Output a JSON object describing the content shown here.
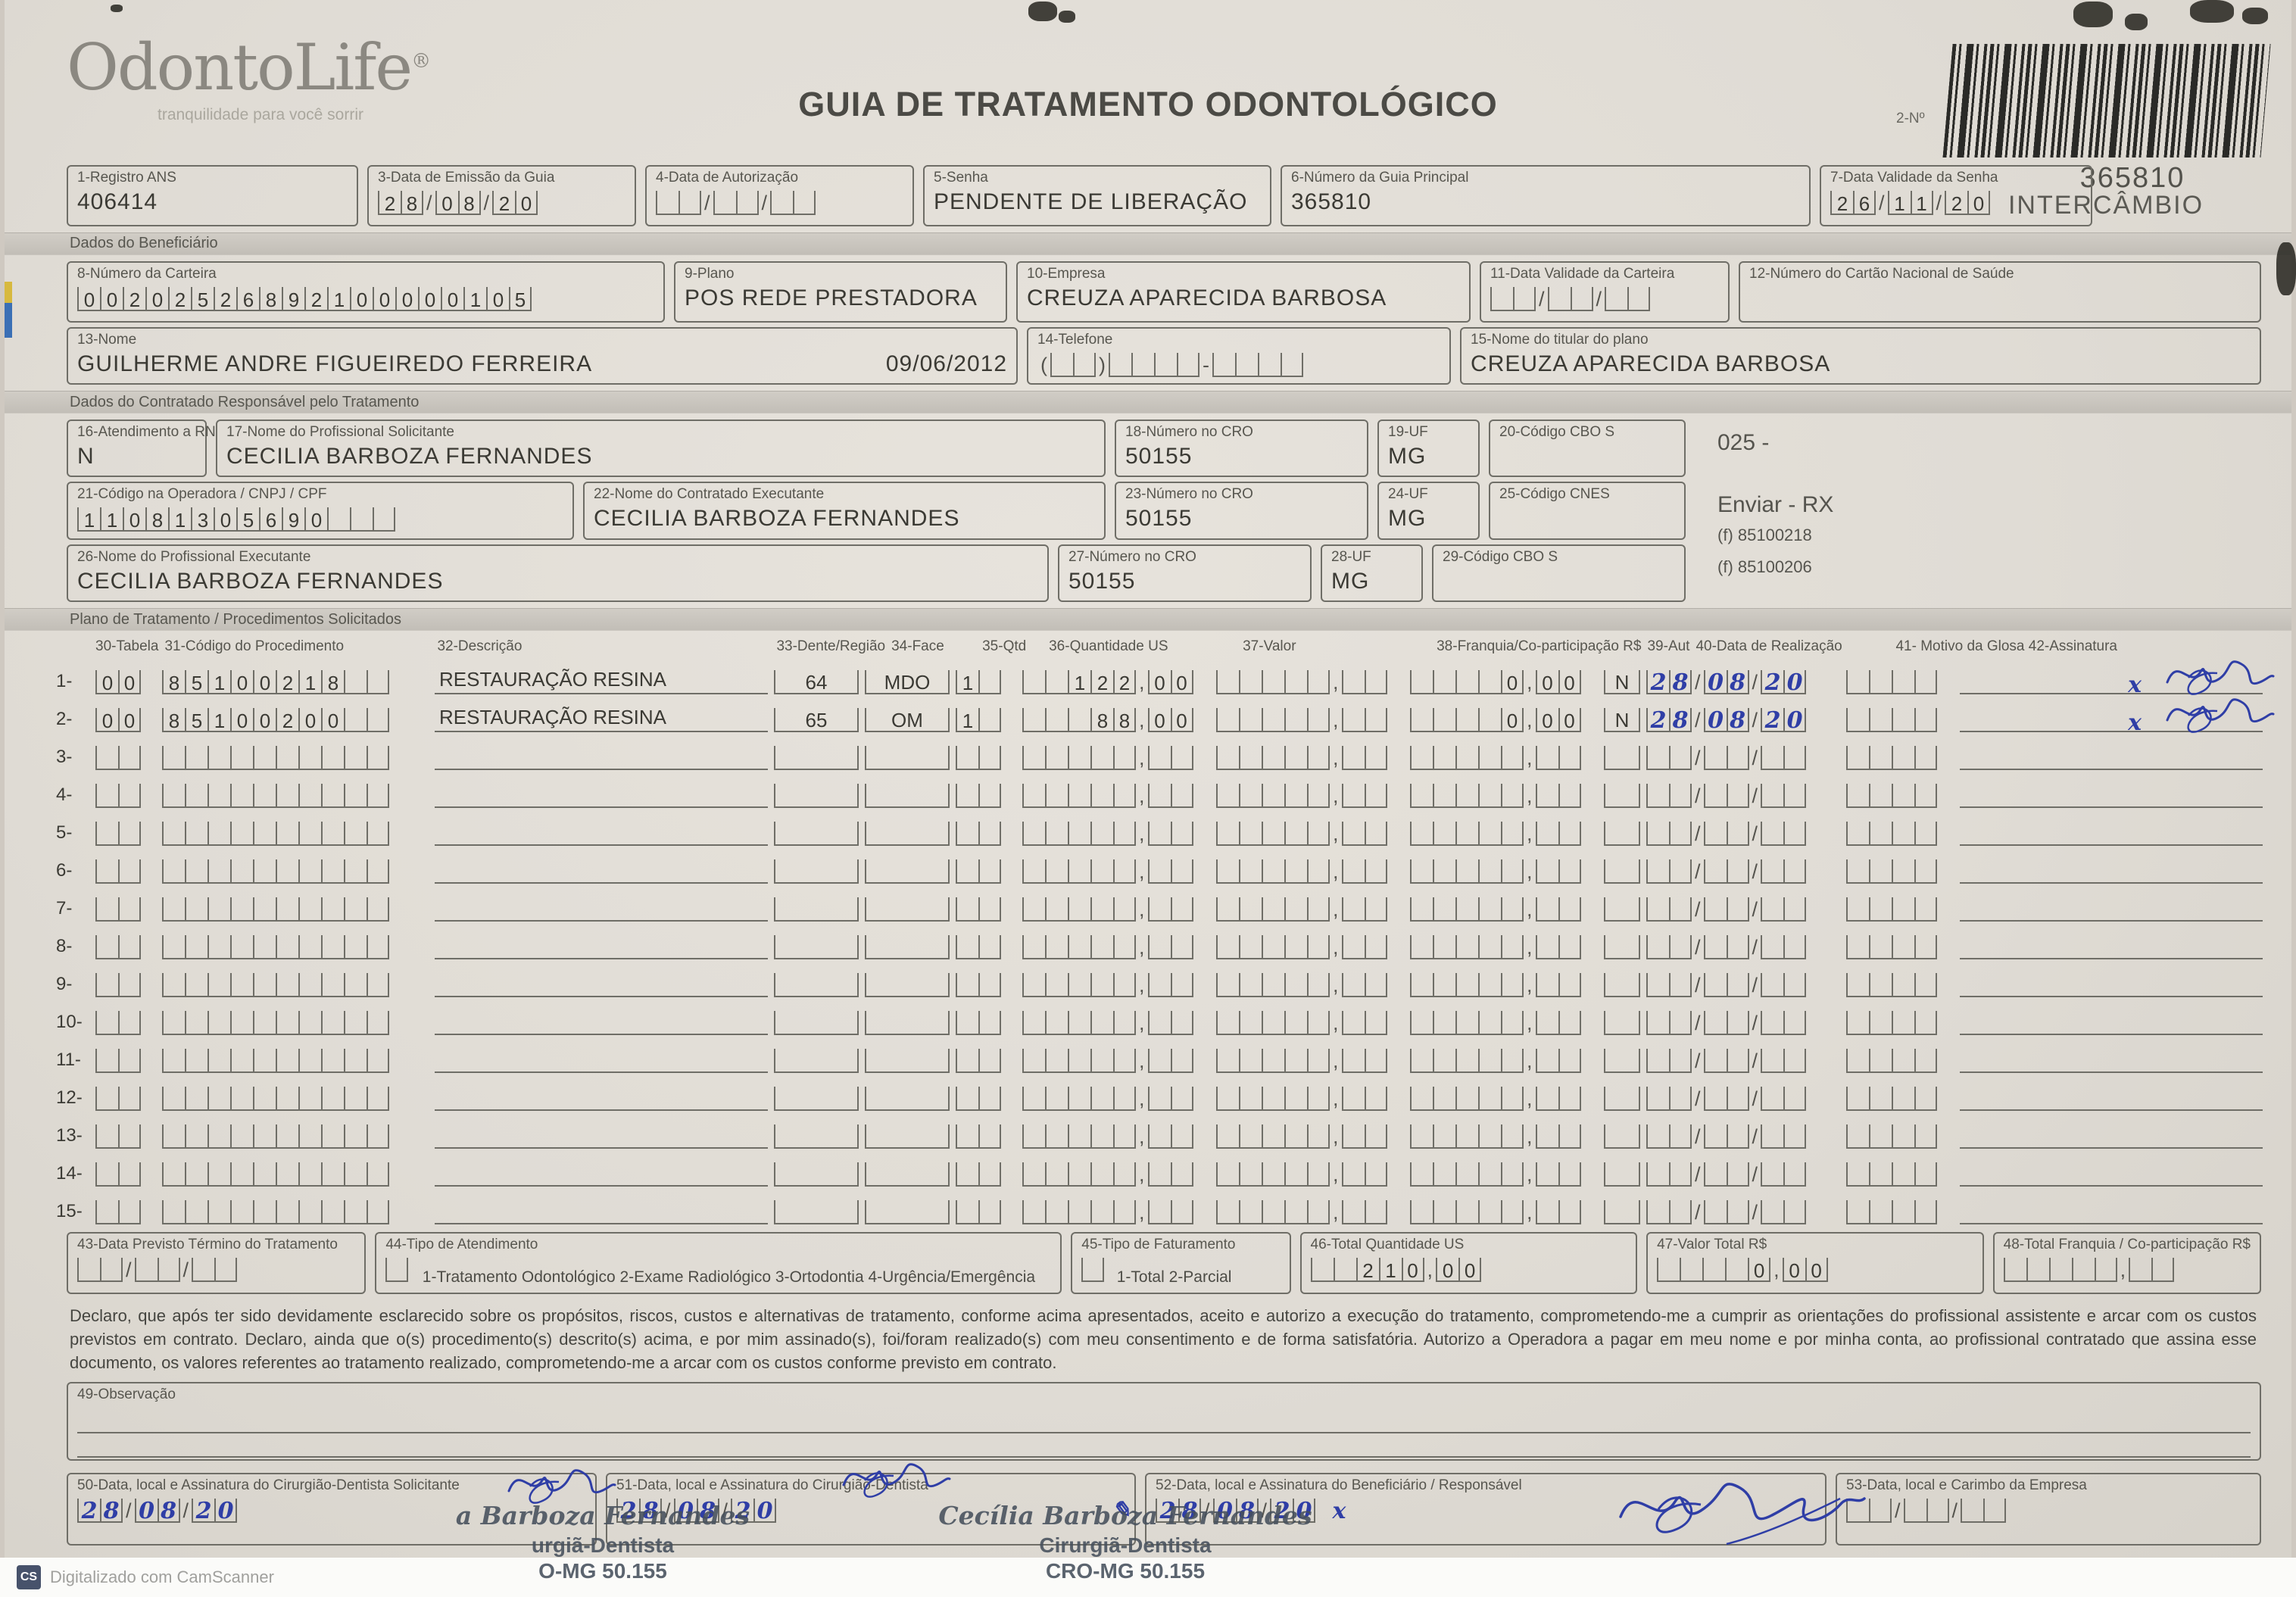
{
  "header": {
    "logo_text": "OdontoLife",
    "logo_reg": "®",
    "logo_tagline": "tranquilidade para você sorrir",
    "title": "GUIA DE TRATAMENTO ODONTOLÓGICO",
    "barcode_label": "2-Nº",
    "guide_number": "365810",
    "guide_type": "INTERCÂMBIO"
  },
  "sections": {
    "beneficiario": "Dados do Beneficiário",
    "contratado": "Dados do Contratado Responsável pelo Tratamento",
    "plano": "Plano de Tratamento / Procedimentos Solicitados"
  },
  "fields": {
    "f1": {
      "label": "1-Registro ANS",
      "value": "406414"
    },
    "f3": {
      "label": "3-Data de Emissão da Guia",
      "value": "28/08/20"
    },
    "f4": {
      "label": "4-Data de Autorização",
      "value": ""
    },
    "f5": {
      "label": "5-Senha",
      "value": "PENDENTE DE LIBERAÇÃO"
    },
    "f6": {
      "label": "6-Número da Guia Principal",
      "value": "365810"
    },
    "f7": {
      "label": "7-Data Validade da Senha",
      "value": "26/11/20"
    },
    "f8": {
      "label": "8-Número da Carteira",
      "value": "00202526892100000105"
    },
    "f9": {
      "label": "9-Plano",
      "value": "POS REDE PRESTADORA"
    },
    "f10": {
      "label": "10-Empresa",
      "value": "CREUZA APARECIDA BARBOSA"
    },
    "f11": {
      "label": "11-Data Validade da Carteira",
      "value": ""
    },
    "f12": {
      "label": "12-Número do Cartão Nacional de Saúde",
      "value": ""
    },
    "f13": {
      "label": "13-Nome",
      "value": "GUILHERME ANDRE FIGUEIREDO FERREIRA",
      "date": "09/06/2012"
    },
    "f14": {
      "label": "14-Telefone",
      "value": ""
    },
    "f15": {
      "label": "15-Nome do titular do plano",
      "value": "CREUZA APARECIDA BARBOSA"
    },
    "f16": {
      "label": "16-Atendimento a RN",
      "value": "N"
    },
    "f17": {
      "label": "17-Nome do Profissional Solicitante",
      "value": "CECILIA BARBOZA FERNANDES"
    },
    "f18": {
      "label": "18-Número no CRO",
      "value": "50155"
    },
    "f19": {
      "label": "19-UF",
      "value": "MG"
    },
    "f20": {
      "label": "20-Código CBO S",
      "value": ""
    },
    "f21": {
      "label": "21-Código na Operadora / CNPJ / CPF",
      "value": "11081305690"
    },
    "f22": {
      "label": "22-Nome do Contratado Executante",
      "value": "CECILIA BARBOZA FERNANDES"
    },
    "f23": {
      "label": "23-Número no CRO",
      "value": "50155"
    },
    "f24": {
      "label": "24-UF",
      "value": "MG"
    },
    "f25": {
      "label": "25-Código CNES",
      "value": ""
    },
    "f26": {
      "label": "26-Nome do Profissional Executante",
      "value": "CECILIA BARBOZA FERNANDES"
    },
    "f27": {
      "label": "27-Número no CRO",
      "value": "50155"
    },
    "f28": {
      "label": "28-UF",
      "value": "MG"
    },
    "f29": {
      "label": "29-Código CBO S",
      "value": ""
    },
    "f43": {
      "label": "43-Data Previsto Término do Tratamento",
      "value": ""
    },
    "f44": {
      "label": "44-Tipo de Atendimento",
      "options": "1-Tratamento Odontológico  2-Exame Radiológico  3-Ortodontia  4-Urgência/Emergência",
      "value": ""
    },
    "f45": {
      "label": "45-Tipo de Faturamento",
      "options": "1-Total  2-Parcial",
      "value": ""
    },
    "f46": {
      "label": "46-Total Quantidade US",
      "value": "210,00"
    },
    "f47": {
      "label": "47-Valor Total R$",
      "value": "0,00"
    },
    "f48": {
      "label": "48-Total Franquia / Co-participação R$",
      "value": ""
    },
    "f49": {
      "label": "49-Observação",
      "value": ""
    },
    "f50": {
      "label": "50-Data, local e Assinatura do Cirurgião-Dentista Solicitante",
      "date": "28/08/20"
    },
    "f51": {
      "label": "51-Data, local e Assinatura do Cirurgião-Dentista",
      "date": "28/08/20"
    },
    "f52": {
      "label": "52-Data, local e Assinatura do Beneficiário / Responsável",
      "date": "28/08/20",
      "mark": "x"
    },
    "f53": {
      "label": "53-Data, local e Carimbo da Empresa",
      "date": ""
    }
  },
  "margin_notes": {
    "code": "025 -",
    "enviar": "Enviar - RX",
    "phone1": "(f) 85100218",
    "phone2": "(f) 85100206"
  },
  "table": {
    "headers": {
      "tabela": "30-Tabela",
      "codigo": "31-Código do  Procedimento",
      "desc": "32-Descrição",
      "dente": "33-Dente/Região",
      "face": "34-Face",
      "qtd": "35-Qtd",
      "us": "36-Quantidade US",
      "valor": "37-Valor",
      "franquia": "38-Franquia/Co-participação R$",
      "aut": "39-Aut",
      "data": "40-Data de Realização",
      "motivo": "41- Motivo da Glosa 42-Assinatura"
    },
    "rows": [
      {
        "n": "1-",
        "tabela": "00",
        "codigo": "85100218",
        "desc": "RESTAURAÇÃO RESINA",
        "dente": "64",
        "face": "MDO",
        "qtd": "1",
        "us": "122,00",
        "valor": "",
        "franquia": "0,00",
        "aut": "N",
        "data": "28/08/20",
        "signed": true
      },
      {
        "n": "2-",
        "tabela": "00",
        "codigo": "85100200",
        "desc": "RESTAURAÇÃO RESINA",
        "dente": "65",
        "face": "OM",
        "qtd": "1",
        "us": "88,00",
        "valor": "",
        "franquia": "0,00",
        "aut": "N",
        "data": "28/08/20",
        "signed": true
      },
      {
        "n": "3-"
      },
      {
        "n": "4-"
      },
      {
        "n": "5-"
      },
      {
        "n": "6-"
      },
      {
        "n": "7-"
      },
      {
        "n": "8-"
      },
      {
        "n": "9-"
      },
      {
        "n": "10-"
      },
      {
        "n": "11-"
      },
      {
        "n": "12-"
      },
      {
        "n": "13-"
      },
      {
        "n": "14-"
      },
      {
        "n": "15-"
      }
    ]
  },
  "declaration": "Declaro, que após ter sido devidamente esclarecido sobre os propósitos, riscos, custos e alternativas de tratamento, conforme acima apresentados, aceito e autorizo a execução do tratamento, comprometendo-me a cumprir as orientações do profissional assistente e arcar com os custos previstos em contrato. Declaro, ainda que o(s) procedimento(s) descrito(s) acima, e por mim assinado(s), foi/foram realizado(s) com meu consentimento e de forma satisfatória. Autorizo a Operadora a pagar em meu nome e por minha conta, ao profissional contratado que assina esse documento, os valores referentes ao tratamento realizado, comprometendo-me a arcar com os custos conforme previsto em contrato.",
  "stamps": {
    "left": {
      "line1": "a Barboza Fernandes",
      "line2": "urgiã-Dentista",
      "line3": "O-MG 50.155"
    },
    "right": {
      "line1": "Cecília Barboza Fernandes",
      "line2": "Cirurgiã-Dentista",
      "line3": "CRO-MG 50.155"
    }
  },
  "scanner_bar": {
    "icon": "CS",
    "text": "Digitalizado com CamScanner"
  },
  "colors": {
    "ink_blue": "#2f3ea6",
    "print_gray": "#3b3a34"
  }
}
